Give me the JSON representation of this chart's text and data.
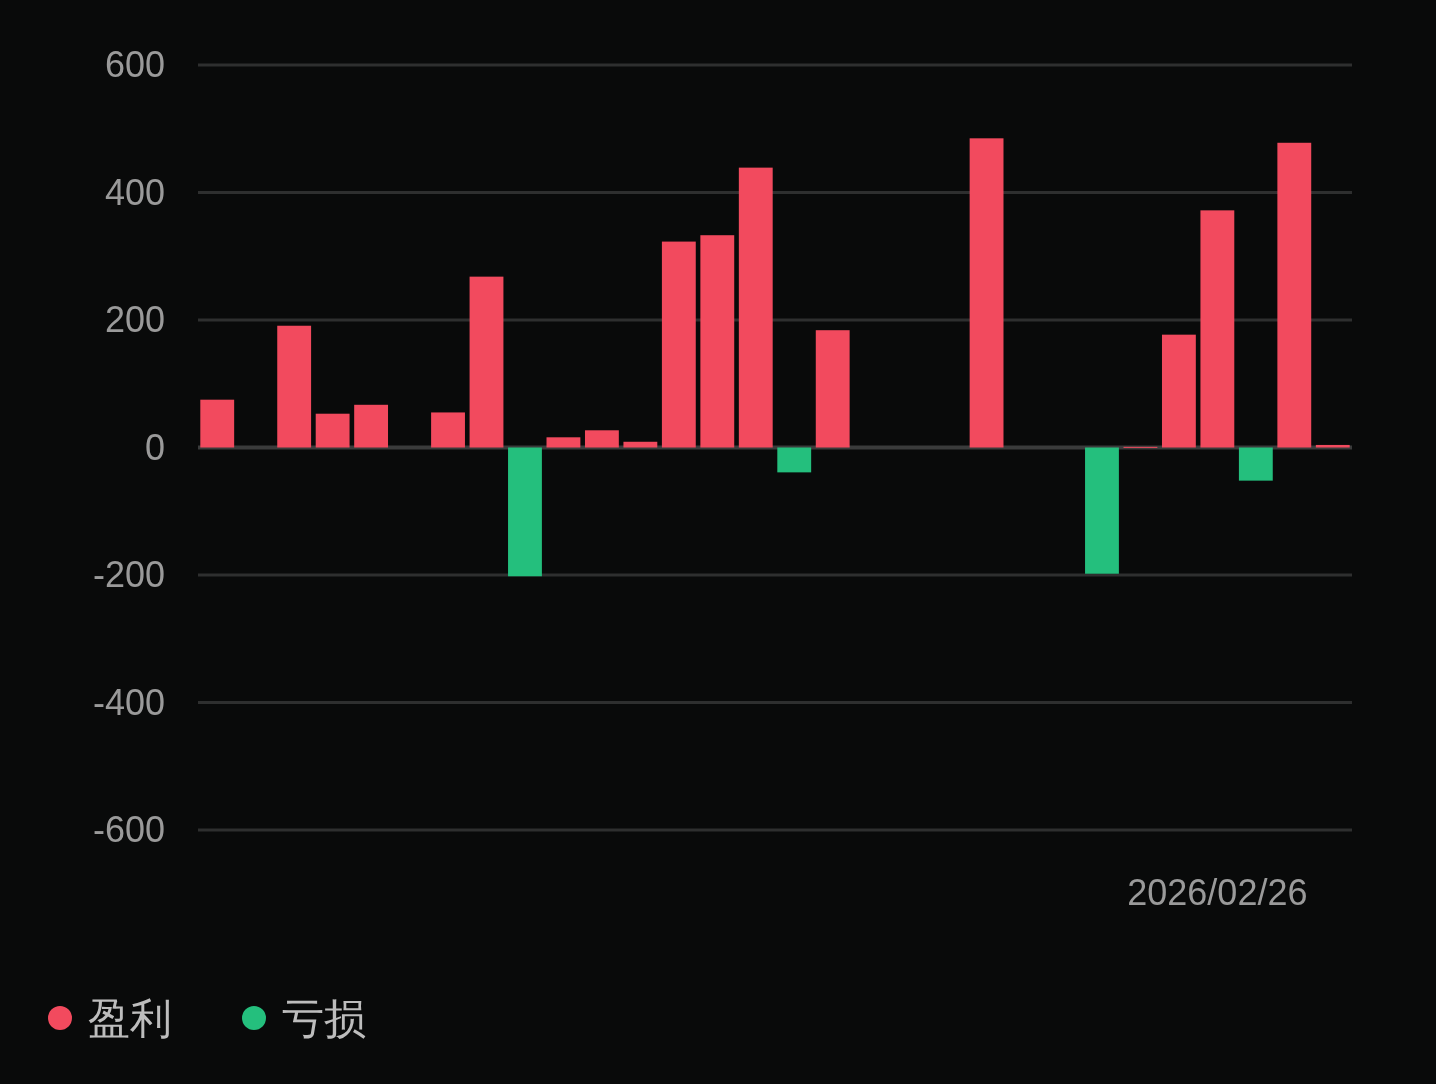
{
  "chart_data": {
    "type": "bar",
    "categories": [
      null,
      null,
      null,
      null,
      null,
      null,
      null,
      null,
      null,
      null,
      null,
      null,
      null,
      null,
      null,
      null,
      null,
      null,
      null,
      null,
      null,
      null,
      null,
      null,
      null,
      null,
      "2026/02/26",
      null,
      null,
      null
    ],
    "series": [
      {
        "name": "盈利",
        "color": "#f24a5e",
        "values": [
          75,
          null,
          191,
          53,
          67,
          null,
          55,
          268,
          null,
          16,
          27,
          9,
          323,
          333,
          439,
          null,
          184,
          null,
          null,
          null,
          485,
          null,
          null,
          null,
          1,
          177,
          372,
          null,
          478,
          4
        ]
      },
      {
        "name": "亏损",
        "color": "#24bf7d",
        "values": [
          null,
          null,
          null,
          null,
          null,
          null,
          null,
          null,
          -202,
          null,
          null,
          null,
          null,
          null,
          null,
          -39,
          null,
          null,
          null,
          null,
          null,
          null,
          null,
          -198,
          null,
          null,
          null,
          -52,
          null,
          null
        ]
      }
    ],
    "ylim": [
      -600,
      600
    ],
    "yticks": [
      600,
      400,
      200,
      0,
      -200,
      -400,
      -600
    ],
    "grid": "y",
    "legend": "bottom left"
  }
}
